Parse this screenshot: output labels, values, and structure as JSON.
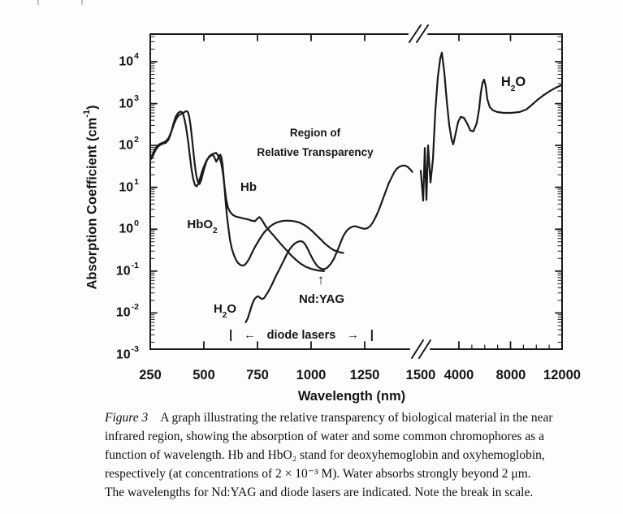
{
  "figure": {
    "y_axis": {
      "title_prefix": "Absorption Coefficient (cm",
      "title_sup": "-1",
      "title_suffix": ")",
      "ticks": [
        {
          "base": "10",
          "exp": "4"
        },
        {
          "base": "10",
          "exp": "3"
        },
        {
          "base": "10",
          "exp": "2"
        },
        {
          "base": "10",
          "exp": "1"
        },
        {
          "base": "10",
          "exp": "0"
        },
        {
          "base": "10",
          "exp": "-1"
        },
        {
          "base": "10",
          "exp": "-2"
        },
        {
          "base": "10",
          "exp": "-3"
        }
      ]
    },
    "x_axis": {
      "title": "Wavelength (nm)",
      "ticks": [
        {
          "label": "250",
          "value": 250
        },
        {
          "label": "500",
          "value": 500
        },
        {
          "label": "750",
          "value": 750
        },
        {
          "label": "1000",
          "value": 1000
        },
        {
          "label": "1250",
          "value": 1250
        },
        {
          "label": "1500",
          "value": 1500
        },
        {
          "label": "4000",
          "value": 4000
        },
        {
          "label": "8000",
          "value": 8000
        },
        {
          "label": "12000",
          "value": 12000
        }
      ]
    },
    "annotations": {
      "region_line1": "Region of",
      "region_line2": "Relative Transparency",
      "hb": "Hb",
      "hbo2_base": "HbO",
      "hbo2_sub": "2",
      "h2o_low_base": "H",
      "h2o_low_sub": "2",
      "h2o_low_suffix": "O",
      "h2o_high_base": "H",
      "h2o_high_sub": "2",
      "h2o_high_suffix": "O",
      "ndyag": "Nd:YAG",
      "ndyag_arrow": "↑",
      "diode": {
        "bar_left": "|",
        "arrow_left": "←",
        "label": "diode lasers",
        "arrow_right": "→",
        "bar_right": "|"
      }
    },
    "caption": {
      "label": "Figure 3",
      "lines": [
        "A graph illustrating the relative transparency of biological material in the near",
        "infrared region, showing the absorption of water and some common chromophores as a",
        "function of wavelength. Hb and HbO₂ stand for deoxyhemoglobin and oxyhemoglobin,",
        "respectively (at concentrations of 2 × 10⁻³ M). Water absorbs strongly beyond 2 μm.",
        "The wavelengths for Nd:YAG and diode lasers are indicated. Note the break in scale."
      ]
    }
  },
  "chart_data": {
    "type": "line",
    "title": "",
    "xlabel": "Wavelength (nm)",
    "ylabel": "Absorption Coefficient (cm-1)",
    "x_scale": "linear with axis break between 1500 and 4000 nm",
    "y_scale": "log",
    "xlim": [
      250,
      12000
    ],
    "ylim": [
      0.001,
      20000
    ],
    "grid": false,
    "x_major_ticks": [
      250,
      500,
      750,
      1000,
      1250,
      1500,
      4000,
      8000,
      12000
    ],
    "y_major_ticks": [
      10000,
      1000,
      100,
      10,
      1,
      0.1,
      0.01,
      0.001
    ],
    "series": [
      {
        "name": "Hb",
        "points": [
          [
            255,
            52
          ],
          [
            265,
            68
          ],
          [
            276,
            88
          ],
          [
            288,
            103
          ],
          [
            300,
            112
          ],
          [
            312,
            118
          ],
          [
            324,
            128
          ],
          [
            336,
            152
          ],
          [
            344,
            190
          ],
          [
            352,
            240
          ],
          [
            362,
            340
          ],
          [
            372,
            440
          ],
          [
            382,
            520
          ],
          [
            392,
            560
          ],
          [
            400,
            580
          ],
          [
            408,
            620
          ],
          [
            414,
            650
          ],
          [
            420,
            660
          ],
          [
            426,
            620
          ],
          [
            432,
            480
          ],
          [
            438,
            300
          ],
          [
            444,
            160
          ],
          [
            450,
            80
          ],
          [
            457,
            38
          ],
          [
            464,
            20
          ],
          [
            472,
            13.5
          ],
          [
            480,
            12
          ],
          [
            488,
            15
          ],
          [
            496,
            22
          ],
          [
            505,
            32
          ],
          [
            514,
            44
          ],
          [
            524,
            54
          ],
          [
            536,
            61
          ],
          [
            548,
            64
          ],
          [
            556,
            67
          ],
          [
            564,
            60
          ],
          [
            572,
            52
          ],
          [
            580,
            40
          ],
          [
            588,
            24
          ],
          [
            596,
            11
          ],
          [
            604,
            5.2
          ],
          [
            612,
            3.3
          ],
          [
            622,
            2.6
          ],
          [
            635,
            2.2
          ],
          [
            650,
            2.0
          ],
          [
            668,
            1.9
          ],
          [
            685,
            1.8
          ],
          [
            700,
            1.75
          ],
          [
            712,
            1.68
          ],
          [
            724,
            1.6
          ],
          [
            738,
            1.55
          ],
          [
            750,
            1.8
          ],
          [
            758,
            1.95
          ],
          [
            766,
            1.8
          ],
          [
            776,
            1.5
          ],
          [
            788,
            1.18
          ],
          [
            800,
            1.0
          ],
          [
            812,
            0.84
          ],
          [
            826,
            0.7
          ],
          [
            842,
            0.56
          ],
          [
            858,
            0.45
          ],
          [
            875,
            0.36
          ],
          [
            892,
            0.29
          ],
          [
            910,
            0.23
          ],
          [
            930,
            0.185
          ],
          [
            952,
            0.15
          ],
          [
            975,
            0.127
          ],
          [
            1000,
            0.113
          ],
          [
            1030,
            0.104
          ],
          [
            1060,
            0.1
          ]
        ]
      },
      {
        "name": "HbO2",
        "points": [
          [
            255,
            48
          ],
          [
            265,
            62
          ],
          [
            276,
            80
          ],
          [
            288,
            96
          ],
          [
            300,
            106
          ],
          [
            312,
            112
          ],
          [
            322,
            115
          ],
          [
            334,
            135
          ],
          [
            342,
            170
          ],
          [
            348,
            210
          ],
          [
            358,
            330
          ],
          [
            368,
            480
          ],
          [
            378,
            580
          ],
          [
            386,
            630
          ],
          [
            392,
            645
          ],
          [
            398,
            620
          ],
          [
            404,
            540
          ],
          [
            410,
            420
          ],
          [
            416,
            290
          ],
          [
            422,
            185
          ],
          [
            428,
            110
          ],
          [
            435,
            55
          ],
          [
            442,
            28
          ],
          [
            450,
            16
          ],
          [
            458,
            11.5
          ],
          [
            466,
            10.5
          ],
          [
            474,
            12
          ],
          [
            484,
            18
          ],
          [
            494,
            26
          ],
          [
            504,
            35
          ],
          [
            514,
            45
          ],
          [
            524,
            52
          ],
          [
            532,
            57
          ],
          [
            540,
            59
          ],
          [
            546,
            56
          ],
          [
            552,
            48
          ],
          [
            558,
            41
          ],
          [
            565,
            48
          ],
          [
            571,
            56
          ],
          [
            577,
            60
          ],
          [
            582,
            52
          ],
          [
            587,
            35
          ],
          [
            592,
            18
          ],
          [
            597,
            9
          ],
          [
            602,
            4.2
          ],
          [
            608,
            2.0
          ],
          [
            615,
            1.0
          ],
          [
            622,
            0.55
          ],
          [
            630,
            0.35
          ],
          [
            640,
            0.24
          ],
          [
            650,
            0.185
          ],
          [
            660,
            0.155
          ],
          [
            670,
            0.14
          ],
          [
            680,
            0.135
          ],
          [
            690,
            0.14
          ],
          [
            700,
            0.16
          ],
          [
            712,
            0.2
          ],
          [
            724,
            0.27
          ],
          [
            736,
            0.36
          ],
          [
            748,
            0.46
          ],
          [
            760,
            0.58
          ],
          [
            772,
            0.72
          ],
          [
            784,
            0.88
          ],
          [
            796,
            1.0
          ],
          [
            810,
            1.18
          ],
          [
            825,
            1.33
          ],
          [
            840,
            1.45
          ],
          [
            855,
            1.53
          ],
          [
            870,
            1.58
          ],
          [
            885,
            1.6
          ],
          [
            900,
            1.6
          ],
          [
            915,
            1.57
          ],
          [
            930,
            1.52
          ],
          [
            945,
            1.44
          ],
          [
            960,
            1.33
          ],
          [
            975,
            1.2
          ],
          [
            990,
            1.05
          ],
          [
            1005,
            0.9
          ],
          [
            1020,
            0.76
          ],
          [
            1035,
            0.64
          ],
          [
            1050,
            0.54
          ],
          [
            1065,
            0.45
          ],
          [
            1080,
            0.39
          ],
          [
            1095,
            0.34
          ],
          [
            1110,
            0.31
          ],
          [
            1130,
            0.285
          ],
          [
            1150,
            0.27
          ]
        ]
      },
      {
        "name": "H2O (visible / near-IR)",
        "points": [
          [
            695,
            0.006
          ],
          [
            705,
            0.0075
          ],
          [
            715,
            0.011
          ],
          [
            725,
            0.016
          ],
          [
            735,
            0.021
          ],
          [
            745,
            0.024
          ],
          [
            753,
            0.025
          ],
          [
            762,
            0.023
          ],
          [
            772,
            0.0215
          ],
          [
            782,
            0.023
          ],
          [
            790,
            0.027
          ],
          [
            800,
            0.032
          ],
          [
            812,
            0.042
          ],
          [
            825,
            0.058
          ],
          [
            838,
            0.08
          ],
          [
            850,
            0.105
          ],
          [
            862,
            0.14
          ],
          [
            875,
            0.19
          ],
          [
            888,
            0.26
          ],
          [
            900,
            0.33
          ],
          [
            912,
            0.4
          ],
          [
            925,
            0.46
          ],
          [
            938,
            0.5
          ],
          [
            950,
            0.52
          ],
          [
            962,
            0.5
          ],
          [
            972,
            0.44
          ],
          [
            982,
            0.36
          ],
          [
            992,
            0.28
          ],
          [
            1002,
            0.22
          ],
          [
            1015,
            0.165
          ],
          [
            1030,
            0.13
          ],
          [
            1045,
            0.115
          ],
          [
            1060,
            0.11
          ],
          [
            1075,
            0.12
          ],
          [
            1090,
            0.145
          ],
          [
            1105,
            0.19
          ],
          [
            1118,
            0.27
          ],
          [
            1130,
            0.38
          ],
          [
            1142,
            0.55
          ],
          [
            1154,
            0.75
          ],
          [
            1166,
            0.92
          ],
          [
            1178,
            1.05
          ],
          [
            1192,
            1.15
          ],
          [
            1205,
            1.18
          ],
          [
            1220,
            1.12
          ],
          [
            1235,
            1.06
          ],
          [
            1250,
            1.02
          ],
          [
            1262,
            1.06
          ],
          [
            1275,
            1.18
          ],
          [
            1288,
            1.45
          ],
          [
            1300,
            1.9
          ],
          [
            1312,
            2.6
          ],
          [
            1325,
            3.8
          ],
          [
            1338,
            5.8
          ],
          [
            1350,
            8.5
          ],
          [
            1362,
            12.5
          ],
          [
            1375,
            17
          ],
          [
            1388,
            23
          ],
          [
            1400,
            28
          ],
          [
            1412,
            31
          ],
          [
            1425,
            33
          ],
          [
            1438,
            33
          ],
          [
            1450,
            31
          ],
          [
            1462,
            27
          ],
          [
            1472,
            23.5
          ]
        ]
      },
      {
        "name": "H2O (IR, after scale break)",
        "points": [
          [
            1650,
            25
          ],
          [
            1800,
            4.8
          ],
          [
            1900,
            87
          ],
          [
            2000,
            5
          ],
          [
            2100,
            100
          ],
          [
            2250,
            13
          ],
          [
            2400,
            47
          ],
          [
            2550,
            690
          ],
          [
            2700,
            4200
          ],
          [
            2850,
            12000
          ],
          [
            2950,
            16500
          ],
          [
            3100,
            5600
          ],
          [
            3250,
            1180
          ],
          [
            3400,
            310
          ],
          [
            3550,
            138
          ],
          [
            3650,
            106
          ],
          [
            3800,
            196
          ],
          [
            3950,
            365
          ],
          [
            4130,
            480
          ],
          [
            4380,
            460
          ],
          [
            4630,
            340
          ],
          [
            4880,
            228
          ],
          [
            5130,
            218
          ],
          [
            5380,
            340
          ],
          [
            5570,
            750
          ],
          [
            5700,
            1830
          ],
          [
            5830,
            3150
          ],
          [
            5950,
            3750
          ],
          [
            6080,
            2620
          ],
          [
            6200,
            1290
          ],
          [
            6390,
            830
          ],
          [
            6640,
            690
          ],
          [
            6960,
            630
          ],
          [
            7460,
            600
          ],
          [
            8090,
            600
          ],
          [
            8720,
            630
          ],
          [
            9220,
            720
          ],
          [
            9600,
            900
          ],
          [
            10100,
            1230
          ],
          [
            10600,
            1620
          ],
          [
            11100,
            2030
          ],
          [
            11550,
            2430
          ],
          [
            12000,
            2790
          ]
        ]
      }
    ]
  }
}
